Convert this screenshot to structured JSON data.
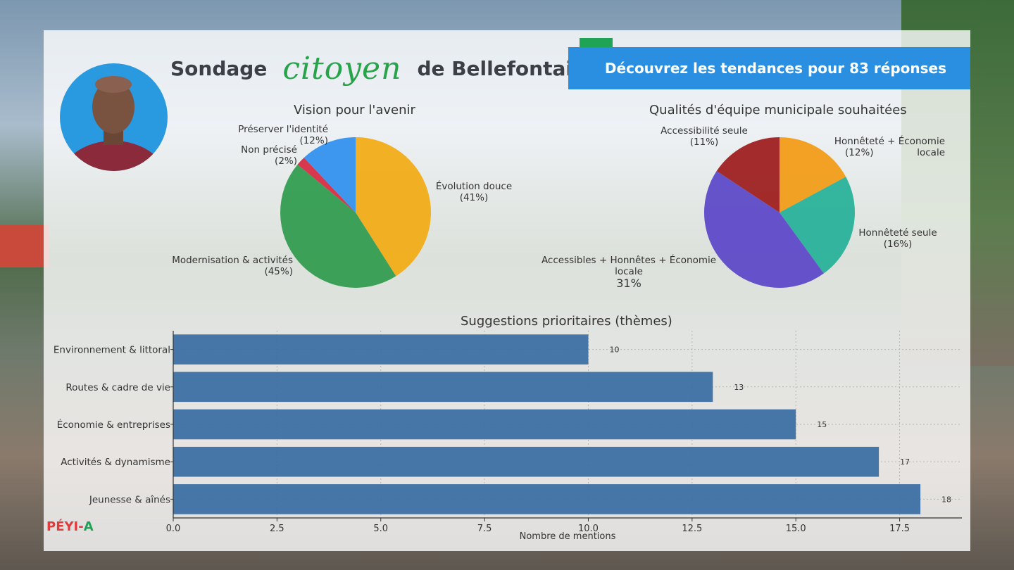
{
  "header": {
    "title_left": "Sondage",
    "title_script": "citoyen",
    "title_right": "de Bellefontaine",
    "banner_text": "Découvrez les tendances pour 83 réponses"
  },
  "logo": {
    "part1": "PÉYI-",
    "part2": "A"
  },
  "colors": {
    "banner": "#2a8fe0",
    "bar": "#3d6fa3",
    "accent_green": "#27a34a"
  },
  "chart_data": [
    {
      "type": "pie",
      "title": "Vision pour l'avenir",
      "slices": [
        {
          "label": "Évolution douce",
          "pct_label": "(41%)",
          "value": 41,
          "color": "#f2aa12"
        },
        {
          "label": "Modernisation & activités",
          "pct_label": "(45%)",
          "value": 45,
          "color": "#2e9a4c"
        },
        {
          "label": "Non précisé",
          "pct_label": "(2%)",
          "value": 2,
          "color": "#d6283f"
        },
        {
          "label": "Préserver l'identité",
          "pct_label": "(12%)",
          "value": 12,
          "color": "#2f8fee"
        }
      ]
    },
    {
      "type": "pie",
      "title": "Qualités d'équipe municipale souhaitées",
      "slices": [
        {
          "label": "Honnêteté + Économie locale",
          "label_lines": [
            "Honnêteté + Économie",
            "locale"
          ],
          "pct_label": "(12%)",
          "value": 12,
          "color": "#f29a12"
        },
        {
          "label": "Honnêteté seule",
          "pct_label": "(16%)",
          "value": 16,
          "color": "#24b098"
        },
        {
          "label": "Accessibles + Honnêtes + Économie locale",
          "label_lines": [
            "Accessibles + Honnêtes + Économie",
            "locale"
          ],
          "pct_label": "31%",
          "value": 31,
          "color": "#5a45c8"
        },
        {
          "label": "Accessibilité seule",
          "pct_label": "(11%)",
          "value": 11,
          "color": "#9c1a1a"
        }
      ]
    },
    {
      "type": "bar",
      "orientation": "horizontal",
      "title": "Suggestions prioritaires (thèmes)",
      "xlabel": "Nombre de mentions",
      "categories": [
        "Environnement & littoral",
        "Routes & cadre de vie",
        "Économie & entreprises",
        "Activités & dynamisme",
        "Jeunesse & aînés"
      ],
      "values": [
        10,
        13,
        15,
        17,
        18
      ],
      "xlim": [
        0,
        19
      ],
      "xticks": [
        "0.0",
        "2.5",
        "5.0",
        "7.5",
        "10.0",
        "12.5",
        "15.0",
        "17.5"
      ],
      "grid": true
    }
  ]
}
